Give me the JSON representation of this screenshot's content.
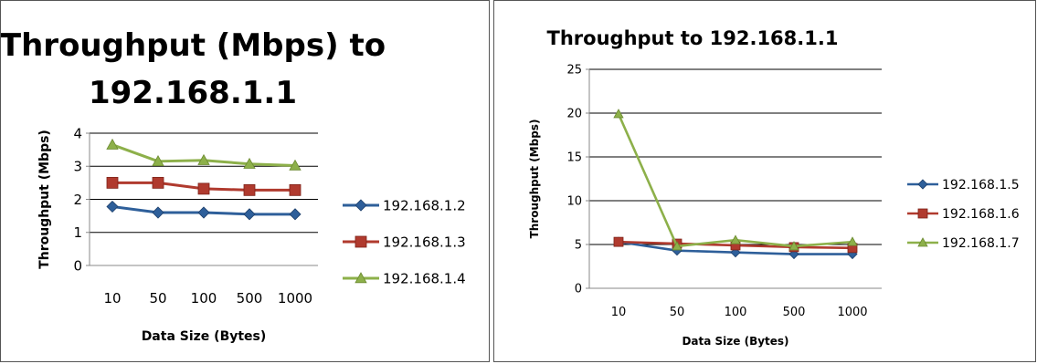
{
  "chart_data": [
    {
      "type": "line",
      "title_lines": [
        "Throughput (Mbps) to",
        "192.168.1.1"
      ],
      "xlabel": "Data Size (Bytes)",
      "ylabel": "Throughput (Mbps)",
      "categories": [
        "10",
        "50",
        "100",
        "500",
        "1000"
      ],
      "ylim": [
        0,
        4
      ],
      "yticks": [
        0,
        1,
        2,
        3,
        4
      ],
      "grid": true,
      "legend_position": "right",
      "series": [
        {
          "name": "192.168.1.2",
          "color": "#2E5F9A",
          "marker": "diamond",
          "values": [
            1.78,
            1.6,
            1.6,
            1.55,
            1.55
          ]
        },
        {
          "name": "192.168.1.3",
          "color": "#B03A2E",
          "marker": "square",
          "values": [
            2.5,
            2.5,
            2.32,
            2.28,
            2.28
          ]
        },
        {
          "name": "192.168.1.4",
          "color": "#8DB04A",
          "marker": "triangle",
          "values": [
            3.65,
            3.15,
            3.18,
            3.07,
            3.02
          ]
        }
      ]
    },
    {
      "type": "line",
      "title_lines": [
        "Throughput to 192.168.1.1"
      ],
      "xlabel": "Data Size (Bytes)",
      "ylabel": "Throughput (Mbps)",
      "categories": [
        "10",
        "50",
        "100",
        "500",
        "1000"
      ],
      "ylim": [
        0,
        25
      ],
      "yticks": [
        0,
        5,
        10,
        15,
        20,
        25
      ],
      "grid": true,
      "legend_position": "right",
      "series": [
        {
          "name": "192.168.1.5",
          "color": "#2E5F9A",
          "marker": "diamond",
          "values": [
            5.3,
            4.3,
            4.1,
            3.9,
            3.9
          ]
        },
        {
          "name": "192.168.1.6",
          "color": "#B03A2E",
          "marker": "square",
          "values": [
            5.3,
            5.1,
            4.9,
            4.7,
            4.6
          ]
        },
        {
          "name": "192.168.1.7",
          "color": "#8DB04A",
          "marker": "triangle",
          "values": [
            19.9,
            4.8,
            5.5,
            4.8,
            5.3
          ]
        }
      ]
    }
  ]
}
